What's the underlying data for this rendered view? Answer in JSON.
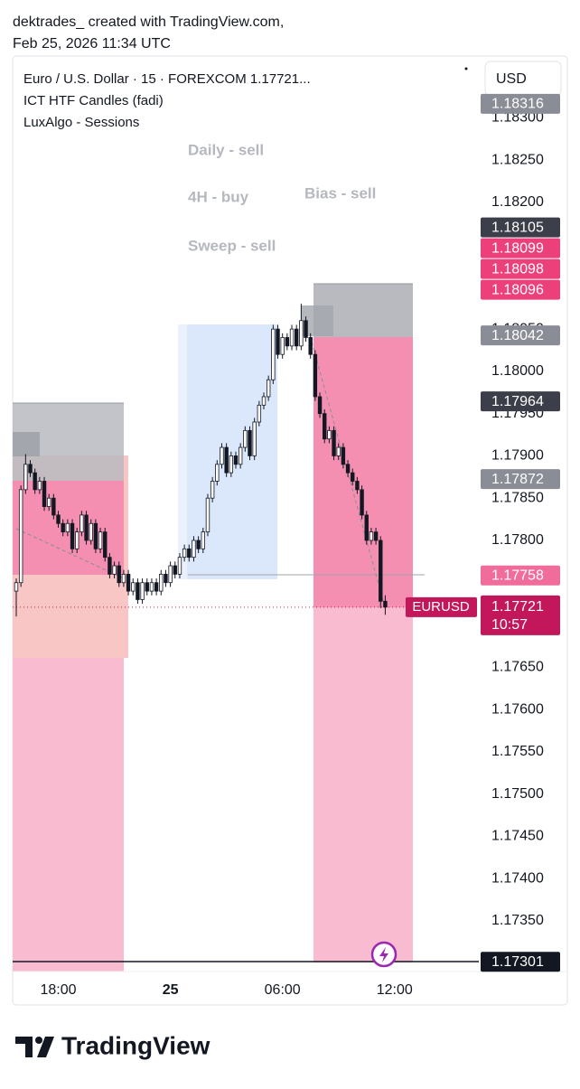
{
  "header": {
    "line1": "dektrades_ created with TradingView.com,",
    "line2": "Feb 25, 2026 11:34 UTC"
  },
  "footer": {
    "brand": "TradingView"
  },
  "chart_data": {
    "type": "candlestick",
    "title": "Euro / U.S. Dollar · 15 · FOREXCOM  1.17721...",
    "indicators": [
      "ICT HTF Candles (fadi)",
      "LuxAlgo - Sessions"
    ],
    "annotations": [
      "Daily - sell",
      "4H - buy",
      "Bias - sell",
      "Sweep - sell"
    ],
    "currency": "USD",
    "xtick_labels": [
      "18:00",
      "25",
      "06:00",
      "12:00"
    ],
    "open": [
      1.1774,
      1.1775,
      1.1786,
      1.1789,
      1.1788,
      1.1786,
      1.1787,
      1.1784,
      1.1785,
      1.1783,
      1.1782,
      1.1781,
      1.1782,
      1.1779,
      1.1781,
      1.1783,
      1.178,
      1.1782,
      1.1779,
      1.1781,
      1.1778,
      1.1776,
      1.1777,
      1.1775,
      1.1776,
      1.1774,
      1.1775,
      1.1773,
      1.1775,
      1.1774,
      1.1775,
      1.1774,
      1.1776,
      1.1775,
      1.1777,
      1.1776,
      1.1778,
      1.1779,
      1.1778,
      1.178,
      1.1779,
      1.1781,
      1.1785,
      1.1787,
      1.1789,
      1.1791,
      1.1788,
      1.179,
      1.1789,
      1.1791,
      1.1793,
      1.179,
      1.1794,
      1.1796,
      1.1797,
      1.1799,
      1.1805,
      1.1802,
      1.1804,
      1.1803,
      1.1805,
      1.1803,
      1.1806,
      1.1804,
      1.1802,
      1.1797,
      1.1795,
      1.1792,
      1.1793,
      1.179,
      1.1791,
      1.1789,
      1.1788,
      1.1787,
      1.1786,
      1.1783,
      1.178,
      1.1781,
      1.178,
      1.17728
    ],
    "high": [
      1.17755,
      1.17865,
      1.17902,
      1.17895,
      1.17885,
      1.17875,
      1.17875,
      1.17855,
      1.17855,
      1.17835,
      1.17825,
      1.17825,
      1.17825,
      1.17815,
      1.17835,
      1.17835,
      1.17825,
      1.17825,
      1.17815,
      1.17815,
      1.17785,
      1.17775,
      1.17775,
      1.17765,
      1.17765,
      1.17755,
      1.17755,
      1.17755,
      1.17755,
      1.17755,
      1.17755,
      1.17765,
      1.17765,
      1.17775,
      1.17775,
      1.17785,
      1.17795,
      1.17795,
      1.17805,
      1.17805,
      1.17815,
      1.17855,
      1.17875,
      1.17895,
      1.17915,
      1.17915,
      1.17905,
      1.17905,
      1.17915,
      1.17935,
      1.17935,
      1.17945,
      1.17965,
      1.17975,
      1.17995,
      1.18055,
      1.18055,
      1.18045,
      1.18045,
      1.18055,
      1.18055,
      1.1808,
      1.18065,
      1.18045,
      1.18025,
      1.17975,
      1.17955,
      1.17935,
      1.17935,
      1.17915,
      1.17915,
      1.17895,
      1.17885,
      1.17875,
      1.17865,
      1.17835,
      1.17815,
      1.17815,
      1.17805,
      1.17735
    ],
    "low": [
      1.1771,
      1.17745,
      1.17855,
      1.17875,
      1.17855,
      1.17855,
      1.17835,
      1.17835,
      1.17825,
      1.17815,
      1.17805,
      1.17805,
      1.17785,
      1.17785,
      1.17805,
      1.17795,
      1.17795,
      1.17785,
      1.17785,
      1.17775,
      1.17755,
      1.17755,
      1.17745,
      1.17745,
      1.17735,
      1.17735,
      1.17725,
      1.17725,
      1.17735,
      1.17735,
      1.17735,
      1.17735,
      1.17745,
      1.17745,
      1.17755,
      1.17755,
      1.17775,
      1.17775,
      1.17775,
      1.17785,
      1.17785,
      1.17805,
      1.17845,
      1.17865,
      1.17885,
      1.17875,
      1.17875,
      1.17885,
      1.17885,
      1.17905,
      1.17895,
      1.17895,
      1.17935,
      1.17955,
      1.17965,
      1.17985,
      1.18015,
      1.18015,
      1.18025,
      1.18025,
      1.18025,
      1.18025,
      1.18035,
      1.18015,
      1.17965,
      1.17945,
      1.17915,
      1.17915,
      1.17895,
      1.17895,
      1.17885,
      1.17875,
      1.17865,
      1.17855,
      1.17825,
      1.17795,
      1.17795,
      1.17795,
      1.1772,
      1.17712
    ],
    "close": [
      1.1775,
      1.1786,
      1.1789,
      1.1788,
      1.1786,
      1.1787,
      1.1784,
      1.1785,
      1.1783,
      1.1782,
      1.1781,
      1.1782,
      1.1779,
      1.1781,
      1.1783,
      1.178,
      1.1782,
      1.1779,
      1.1781,
      1.1778,
      1.1776,
      1.1777,
      1.1775,
      1.1776,
      1.1774,
      1.1775,
      1.1773,
      1.1775,
      1.1774,
      1.1775,
      1.1774,
      1.1776,
      1.1775,
      1.1777,
      1.1776,
      1.1778,
      1.1779,
      1.1778,
      1.178,
      1.1779,
      1.1781,
      1.1785,
      1.1787,
      1.1789,
      1.1791,
      1.1788,
      1.179,
      1.1789,
      1.1791,
      1.1793,
      1.179,
      1.1794,
      1.1796,
      1.1797,
      1.1799,
      1.1805,
      1.1802,
      1.1804,
      1.1803,
      1.1805,
      1.1803,
      1.1806,
      1.1804,
      1.1802,
      1.1797,
      1.1795,
      1.1792,
      1.1793,
      1.179,
      1.1791,
      1.1789,
      1.1788,
      1.1787,
      1.1786,
      1.1783,
      1.178,
      1.1781,
      1.178,
      1.17728,
      1.17721
    ],
    "ylim": [
      1.1729,
      1.18373
    ],
    "yticks": [
      {
        "value": 1.183,
        "label": "1.18300"
      },
      {
        "value": 1.1825,
        "label": "1.18250"
      },
      {
        "value": 1.182,
        "label": "1.18200"
      },
      {
        "value": 1.1805,
        "label": "1.18050"
      },
      {
        "value": 1.18,
        "label": "1.18000"
      },
      {
        "value": 1.1795,
        "label": "1.17950"
      },
      {
        "value": 1.179,
        "label": "1.17900"
      },
      {
        "value": 1.1785,
        "label": "1.17850"
      },
      {
        "value": 1.178,
        "label": "1.17800"
      },
      {
        "value": 1.1765,
        "label": "1.17650"
      },
      {
        "value": 1.176,
        "label": "1.17600"
      },
      {
        "value": 1.1755,
        "label": "1.17550"
      },
      {
        "value": 1.175,
        "label": "1.17500"
      },
      {
        "value": 1.1745,
        "label": "1.17450"
      },
      {
        "value": 1.174,
        "label": "1.17400"
      },
      {
        "value": 1.1735,
        "label": "1.17350"
      }
    ],
    "price_labels": [
      {
        "value": 1.18316,
        "color": "#8a8d96"
      },
      {
        "value": 1.18105,
        "color": "#3c3f4a"
      },
      {
        "value": 1.18099,
        "color": "#ec407a"
      },
      {
        "value": 1.18098,
        "color": "#ec407a"
      },
      {
        "value": 1.18096,
        "color": "#ec407a"
      },
      {
        "value": 1.18042,
        "color": "#8a8d96"
      },
      {
        "value": 1.17964,
        "color": "#3c3f4a"
      },
      {
        "value": 1.17872,
        "color": "#8a8d96"
      },
      {
        "value": 1.17758,
        "color": "#f06c9b"
      },
      {
        "value": 1.17301,
        "color": "#131722"
      }
    ],
    "last_price": {
      "symbol": "EURUSD",
      "value": 1.17721,
      "countdown": "10:57",
      "color": "#c2185b"
    }
  }
}
